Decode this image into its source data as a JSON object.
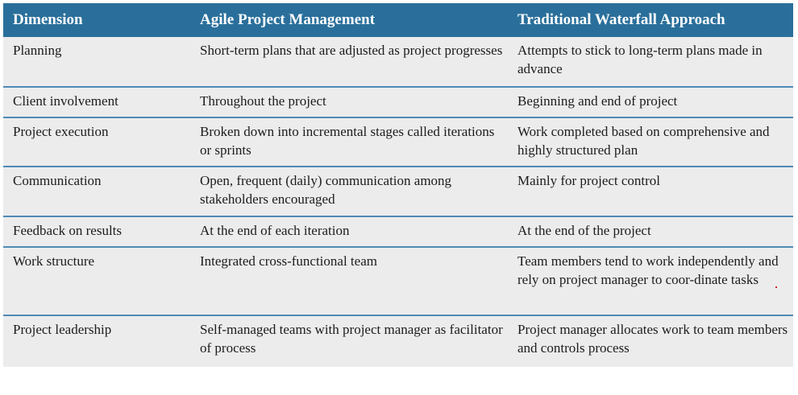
{
  "table": {
    "headers": [
      "Dimension",
      "Agile Project Management",
      "Traditional Waterfall Approach"
    ],
    "rows": [
      [
        "Planning",
        "Short-term plans that are adjusted as project progresses",
        "Attempts to stick to long-term plans made in advance"
      ],
      [
        "Client involvement",
        "Throughout the project",
        "Beginning and end of project"
      ],
      [
        "Project execution",
        "Broken down into incremental stages called iterations or sprints",
        "Work completed based on comprehensive and highly structured plan"
      ],
      [
        "Communication",
        "Open, frequent (daily) communication among stakeholders encouraged",
        "Mainly for project control"
      ],
      [
        "Feedback on results",
        "At the end of each iteration",
        "At the end of the project"
      ],
      [
        "Work structure",
        "Integrated cross-functional team",
        "Team members tend to work independently and rely on project manager to coor-dinate tasks"
      ],
      [
        "Project leadership",
        "Self-managed teams with project manager as facilitator of process",
        "Project manager allocates work to team members and controls process"
      ]
    ],
    "colors": {
      "header_bg": "#2a6f9b",
      "header_text": "#ffffff",
      "row_bg": "#ececed",
      "divider": "#4f8bb5"
    }
  }
}
